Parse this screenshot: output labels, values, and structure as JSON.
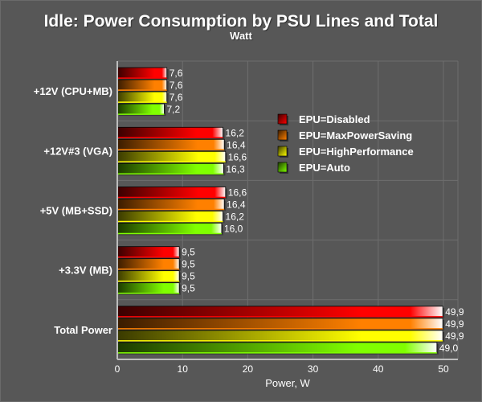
{
  "chart_data": {
    "type": "bar",
    "orientation": "horizontal",
    "title": "Idle: Power Consumption by PSU Lines and Total",
    "subtitle": "Watt",
    "xlabel": "Power, W",
    "ylabel": "",
    "xlim": [
      0,
      52
    ],
    "xticks": [
      0,
      10,
      20,
      30,
      40,
      50
    ],
    "tick_labels": [
      "0",
      "10",
      "20",
      "30",
      "40",
      "50"
    ],
    "grid": true,
    "legend_position": "right-upper",
    "categories": [
      "+12V (CPU+MB)",
      "+12V#3 (VGA)",
      "+5V (MB+SSD)",
      "+3.3V (MB)",
      "Total Power"
    ],
    "series": [
      {
        "name": "EPU=Disabled",
        "color": "#ff0000",
        "values": [
          7.6,
          16.2,
          16.6,
          9.5,
          49.9
        ],
        "labels": [
          "7,6",
          "16,2",
          "16,6",
          "9,5",
          "49,9"
        ]
      },
      {
        "name": "EPU=MaxPowerSaving",
        "color": "#ff8000",
        "values": [
          7.6,
          16.4,
          16.4,
          9.5,
          49.9
        ],
        "labels": [
          "7,6",
          "16,4",
          "16,4",
          "9,5",
          "49,9"
        ]
      },
      {
        "name": "EPU=HighPerformance",
        "color": "#ffff00",
        "values": [
          7.6,
          16.6,
          16.2,
          9.5,
          49.9
        ],
        "labels": [
          "7,6",
          "16,6",
          "16,2",
          "9,5",
          "49,9"
        ]
      },
      {
        "name": "EPU=Auto",
        "color": "#80ff00",
        "values": [
          7.2,
          16.3,
          16.0,
          9.5,
          49.0
        ],
        "labels": [
          "7,2",
          "16,3",
          "16,0",
          "9,5",
          "49,0"
        ]
      }
    ]
  }
}
